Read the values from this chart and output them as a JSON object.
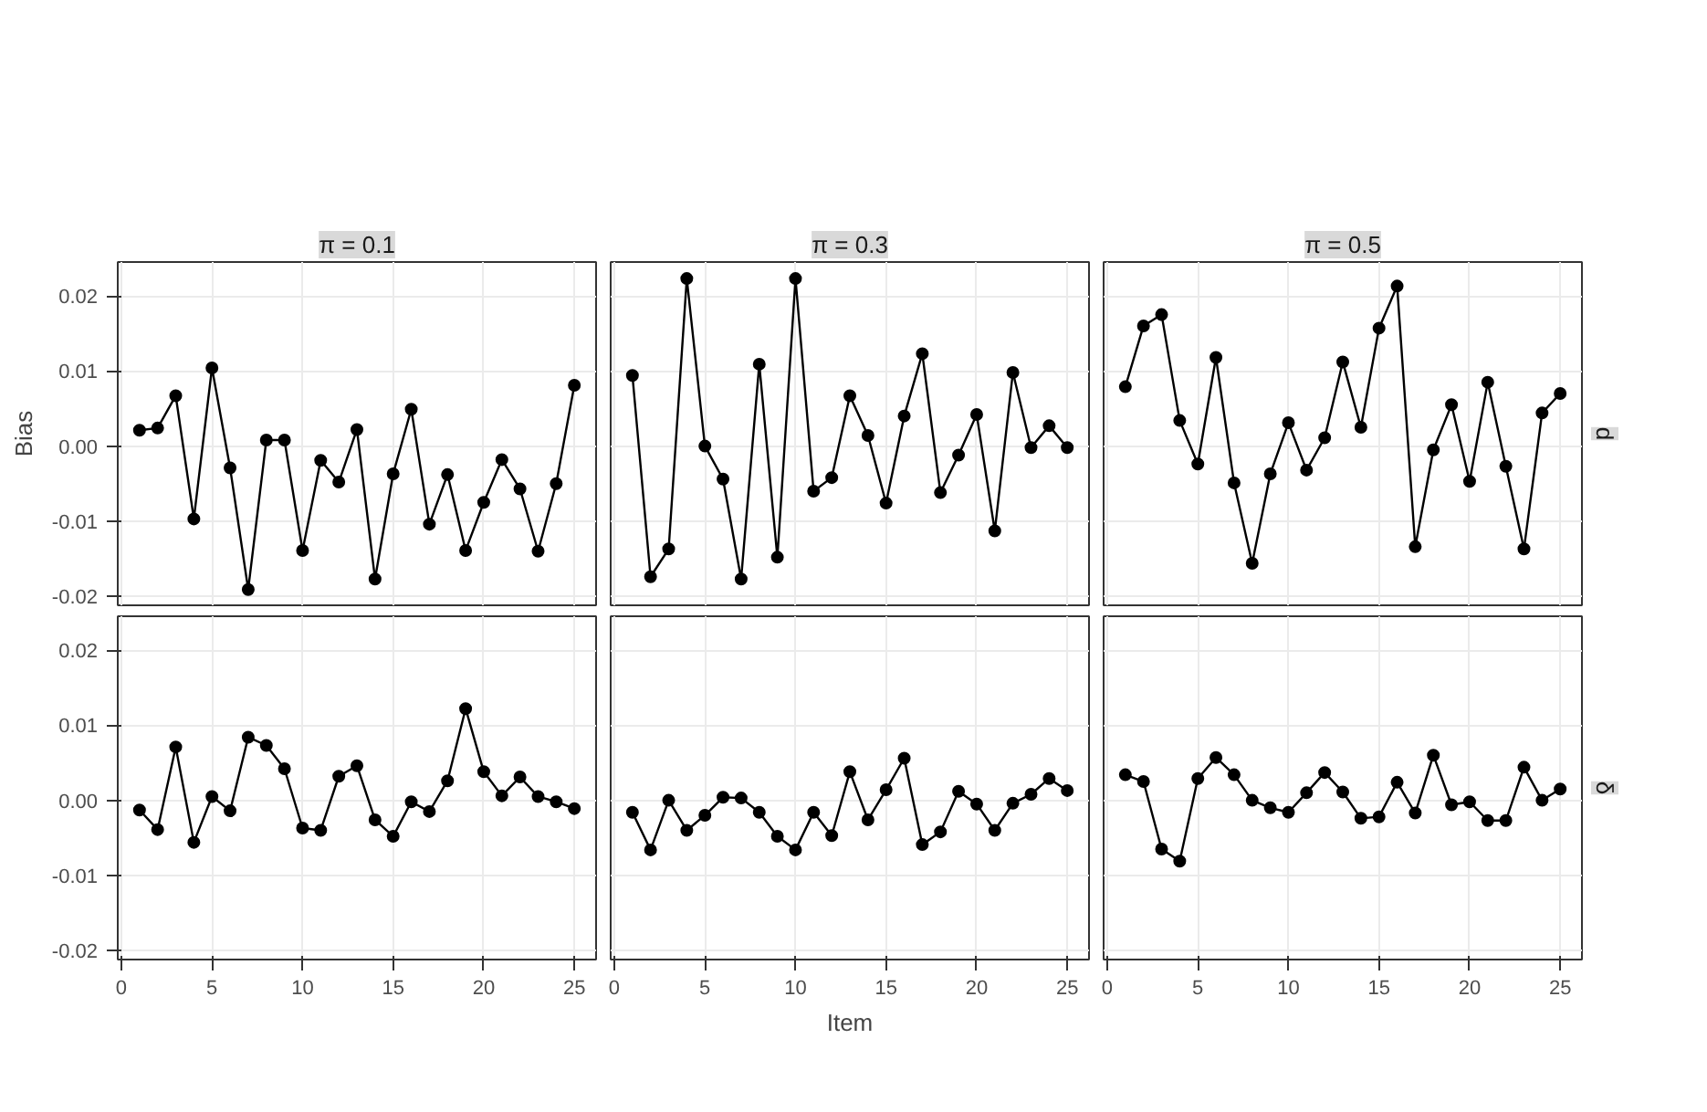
{
  "chart_data": [
    {
      "type": "line",
      "title": "π = 0.1",
      "ylabel": "Bias",
      "marker": "circle",
      "color": "#000000",
      "grid": true,
      "tick_labels": "y",
      "x": [
        1,
        2,
        3,
        4,
        5,
        6,
        7,
        8,
        9,
        10,
        11,
        12,
        13,
        14,
        15,
        16,
        17,
        18,
        19,
        20,
        21,
        22,
        23,
        24,
        25
      ],
      "values": [
        0.0021,
        0.0024,
        0.0067,
        -0.0097,
        0.0104,
        -0.0029,
        -0.0191,
        0.0008,
        0.0008,
        -0.0139,
        -0.0019,
        -0.0048,
        0.0022,
        -0.0177,
        -0.0037,
        0.0049,
        -0.0104,
        -0.0038,
        -0.0139,
        -0.0075,
        -0.0018,
        -0.0057,
        -0.014,
        -0.005,
        0.0081
      ],
      "xlim": [
        -0.2,
        26.2
      ],
      "ylim": [
        -0.0212,
        0.0245
      ],
      "xticks": [
        0,
        5,
        10,
        15,
        20,
        25
      ],
      "yticks": [
        -0.02,
        -0.01,
        {
          "value": 0,
          "label": "0.00"
        },
        0.01,
        0.02
      ]
    },
    {
      "type": "line",
      "title": "π = 0.3",
      "marker": "circle",
      "color": "#000000",
      "grid": true,
      "tick_labels": false,
      "x": [
        1,
        2,
        3,
        4,
        5,
        6,
        7,
        8,
        9,
        10,
        11,
        12,
        13,
        14,
        15,
        16,
        17,
        18,
        19,
        20,
        21,
        22,
        23,
        24,
        25
      ],
      "values": [
        0.0094,
        -0.0174,
        -0.0137,
        0.0223,
        0.0,
        -0.0044,
        -0.0177,
        0.0109,
        -0.0148,
        0.0223,
        -0.006,
        -0.0042,
        0.0067,
        0.0014,
        -0.0076,
        0.004,
        0.0123,
        -0.0062,
        -0.0012,
        0.0042,
        -0.0113,
        0.0098,
        -0.0002,
        0.0027,
        -0.0002
      ],
      "xlim": [
        -0.2,
        26.2
      ],
      "ylim": [
        -0.0212,
        0.0245
      ],
      "xticks": [
        0,
        5,
        10,
        15,
        20,
        25
      ],
      "yticks": [
        -0.02,
        -0.01,
        0,
        0.01,
        0.02
      ]
    },
    {
      "type": "line",
      "title": "π = 0.5",
      "y2label": "d",
      "marker": "circle",
      "color": "#000000",
      "grid": true,
      "tick_labels": false,
      "x": [
        1,
        2,
        3,
        4,
        5,
        6,
        7,
        8,
        9,
        10,
        11,
        12,
        13,
        14,
        15,
        16,
        17,
        18,
        19,
        20,
        21,
        22,
        23,
        24,
        25
      ],
      "values": [
        0.0079,
        0.016,
        0.0175,
        0.0034,
        -0.0024,
        0.0118,
        -0.0049,
        -0.0156,
        -0.0037,
        0.0031,
        -0.0032,
        0.0011,
        0.0112,
        0.0025,
        0.0157,
        0.0213,
        -0.0134,
        -0.0005,
        0.0055,
        -0.0047,
        0.0085,
        -0.0027,
        -0.0137,
        0.0044,
        0.007
      ],
      "xlim": [
        -0.2,
        26.2
      ],
      "ylim": [
        -0.0212,
        0.0245
      ],
      "xticks": [
        0,
        5,
        10,
        15,
        20,
        25
      ],
      "yticks": [
        -0.02,
        -0.01,
        0,
        0.01,
        0.02
      ]
    },
    {
      "type": "line",
      "marker": "circle",
      "color": "#000000",
      "grid": true,
      "x": [
        1,
        2,
        3,
        4,
        5,
        6,
        7,
        8,
        9,
        10,
        11,
        12,
        13,
        14,
        15,
        16,
        17,
        18,
        19,
        20,
        21,
        22,
        23,
        24,
        25
      ],
      "values": [
        -0.0013,
        -0.0039,
        0.0071,
        -0.0056,
        0.0005,
        -0.0014,
        0.0084,
        0.0073,
        0.0042,
        -0.0037,
        -0.004,
        0.0032,
        0.0046,
        -0.0026,
        -0.0048,
        -0.0002,
        -0.0015,
        0.0026,
        0.0122,
        0.0038,
        0.0006,
        0.0031,
        0.0005,
        -0.0002,
        -0.0011
      ],
      "xlim": [
        -0.2,
        26.2
      ],
      "ylim": [
        -0.0212,
        0.0245
      ],
      "xticks": [
        0,
        5,
        10,
        15,
        20,
        25
      ],
      "yticks": [
        -0.02,
        -0.01,
        {
          "value": 0,
          "label": "0.00"
        },
        0.01,
        0.02
      ]
    },
    {
      "type": "line",
      "xlabel": "Item",
      "marker": "circle",
      "color": "#000000",
      "grid": true,
      "tick_labels": "x",
      "x": [
        1,
        2,
        3,
        4,
        5,
        6,
        7,
        8,
        9,
        10,
        11,
        12,
        13,
        14,
        15,
        16,
        17,
        18,
        19,
        20,
        21,
        22,
        23,
        24,
        25
      ],
      "values": [
        -0.0016,
        -0.0066,
        0.0,
        -0.004,
        -0.002,
        0.0004,
        0.0003,
        -0.0016,
        -0.0048,
        -0.0066,
        -0.0016,
        -0.0047,
        0.0038,
        -0.0026,
        0.0014,
        0.0056,
        -0.0059,
        -0.0042,
        0.0012,
        -0.0005,
        -0.004,
        -0.0004,
        0.0008,
        0.0029,
        0.0013
      ],
      "xlim": [
        -0.2,
        26.2
      ],
      "ylim": [
        -0.0212,
        0.0245
      ],
      "xticks": [
        0,
        5,
        10,
        15,
        20,
        25
      ],
      "yticks": [
        -0.02,
        -0.01,
        0,
        0.01,
        0.02
      ]
    },
    {
      "type": "line",
      "y2label": "δ",
      "marker": "circle",
      "color": "#000000",
      "grid": true,
      "tick_labels": "x",
      "x": [
        1,
        2,
        3,
        4,
        5,
        6,
        7,
        8,
        9,
        10,
        11,
        12,
        13,
        14,
        15,
        16,
        17,
        18,
        19,
        20,
        21,
        22,
        23,
        24,
        25
      ],
      "values": [
        0.0034,
        0.0025,
        -0.0065,
        -0.0081,
        0.0029,
        0.0057,
        0.0034,
        0.0,
        -0.001,
        -0.0016,
        0.001,
        0.0037,
        0.0011,
        -0.0024,
        -0.0022,
        0.0024,
        -0.0017,
        0.006,
        -0.0006,
        -0.0002,
        -0.0027,
        -0.0027,
        0.0044,
        0.0,
        0.0015
      ],
      "xlim": [
        -0.2,
        26.2
      ],
      "ylim": [
        -0.0212,
        0.0245
      ],
      "xticks": [
        0,
        5,
        10,
        15,
        20,
        25
      ],
      "yticks": [
        -0.02,
        -0.01,
        0,
        0.01,
        0.02
      ]
    }
  ]
}
